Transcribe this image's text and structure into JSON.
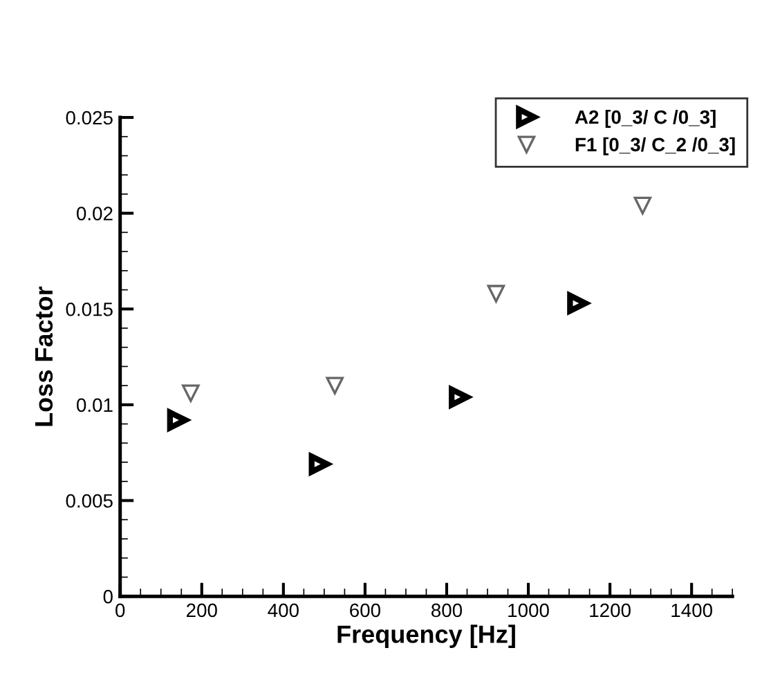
{
  "chart_data": {
    "type": "scatter",
    "xlabel": "Frequency [Hz]",
    "ylabel": "Loss Factor",
    "series": [
      {
        "name": "A2 [0_3/ C /0_3]",
        "color": "#000000",
        "marker": "triangle-right",
        "x": [
          141,
          488,
          831,
          1121
        ],
        "values": [
          0.0092,
          0.0069,
          0.0104,
          0.0153
        ]
      },
      {
        "name": "F1 [0_3/ C_2 /0_3]",
        "color": "#666666",
        "marker": "triangle-down",
        "x": [
          173,
          526,
          921,
          1280
        ],
        "values": [
          0.0106,
          0.011,
          0.0158,
          0.0204
        ]
      }
    ],
    "xlim": [
      0,
      1500
    ],
    "xticks": [
      0,
      200,
      400,
      600,
      800,
      1000,
      1200,
      1400
    ],
    "ylim": [
      0,
      0.025
    ],
    "yticks": [
      0,
      0.005,
      0.01,
      0.015,
      0.02,
      0.025
    ],
    "grid": false,
    "legend": "top right"
  }
}
